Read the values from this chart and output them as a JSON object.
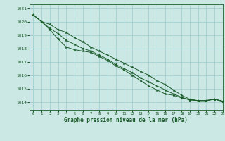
{
  "title": "Graphe pression niveau de la mer (hPa)",
  "bg_color": "#cce8e4",
  "grid_color": "#99cccc",
  "line_color": "#1a5c2a",
  "marker_color": "#1a5c2a",
  "xlim": [
    -0.5,
    23
  ],
  "ylim": [
    1013.4,
    1021.3
  ],
  "yticks": [
    1014,
    1015,
    1016,
    1017,
    1018,
    1019,
    1020,
    1021
  ],
  "xticks": [
    0,
    1,
    2,
    3,
    4,
    5,
    6,
    7,
    8,
    9,
    10,
    11,
    12,
    13,
    14,
    15,
    16,
    17,
    18,
    19,
    20,
    21,
    22,
    23
  ],
  "series": [
    [
      1020.5,
      1020.0,
      1019.8,
      1019.4,
      1019.2,
      1018.8,
      1018.5,
      1018.1,
      1017.8,
      1017.5,
      1017.2,
      1016.9,
      1016.6,
      1016.3,
      1016.0,
      1015.6,
      1015.3,
      1014.9,
      1014.5,
      1014.2,
      1014.1,
      1014.1,
      1014.2,
      1014.05
    ],
    [
      1020.5,
      1020.0,
      1019.5,
      1019.1,
      1018.6,
      1018.3,
      1018.0,
      1017.8,
      1017.5,
      1017.2,
      1016.8,
      1016.5,
      1016.2,
      1015.8,
      1015.5,
      1015.2,
      1014.9,
      1014.6,
      1014.35,
      1014.15,
      1014.1,
      1014.1,
      1014.2,
      1014.05
    ],
    [
      1020.5,
      1020.0,
      1019.4,
      1018.7,
      1018.1,
      1017.9,
      1017.8,
      1017.7,
      1017.4,
      1017.1,
      1016.7,
      1016.4,
      1016.0,
      1015.6,
      1015.2,
      1014.9,
      1014.6,
      1014.5,
      1014.3,
      1014.15,
      1014.1,
      1014.1,
      1014.2,
      1014.05
    ]
  ]
}
